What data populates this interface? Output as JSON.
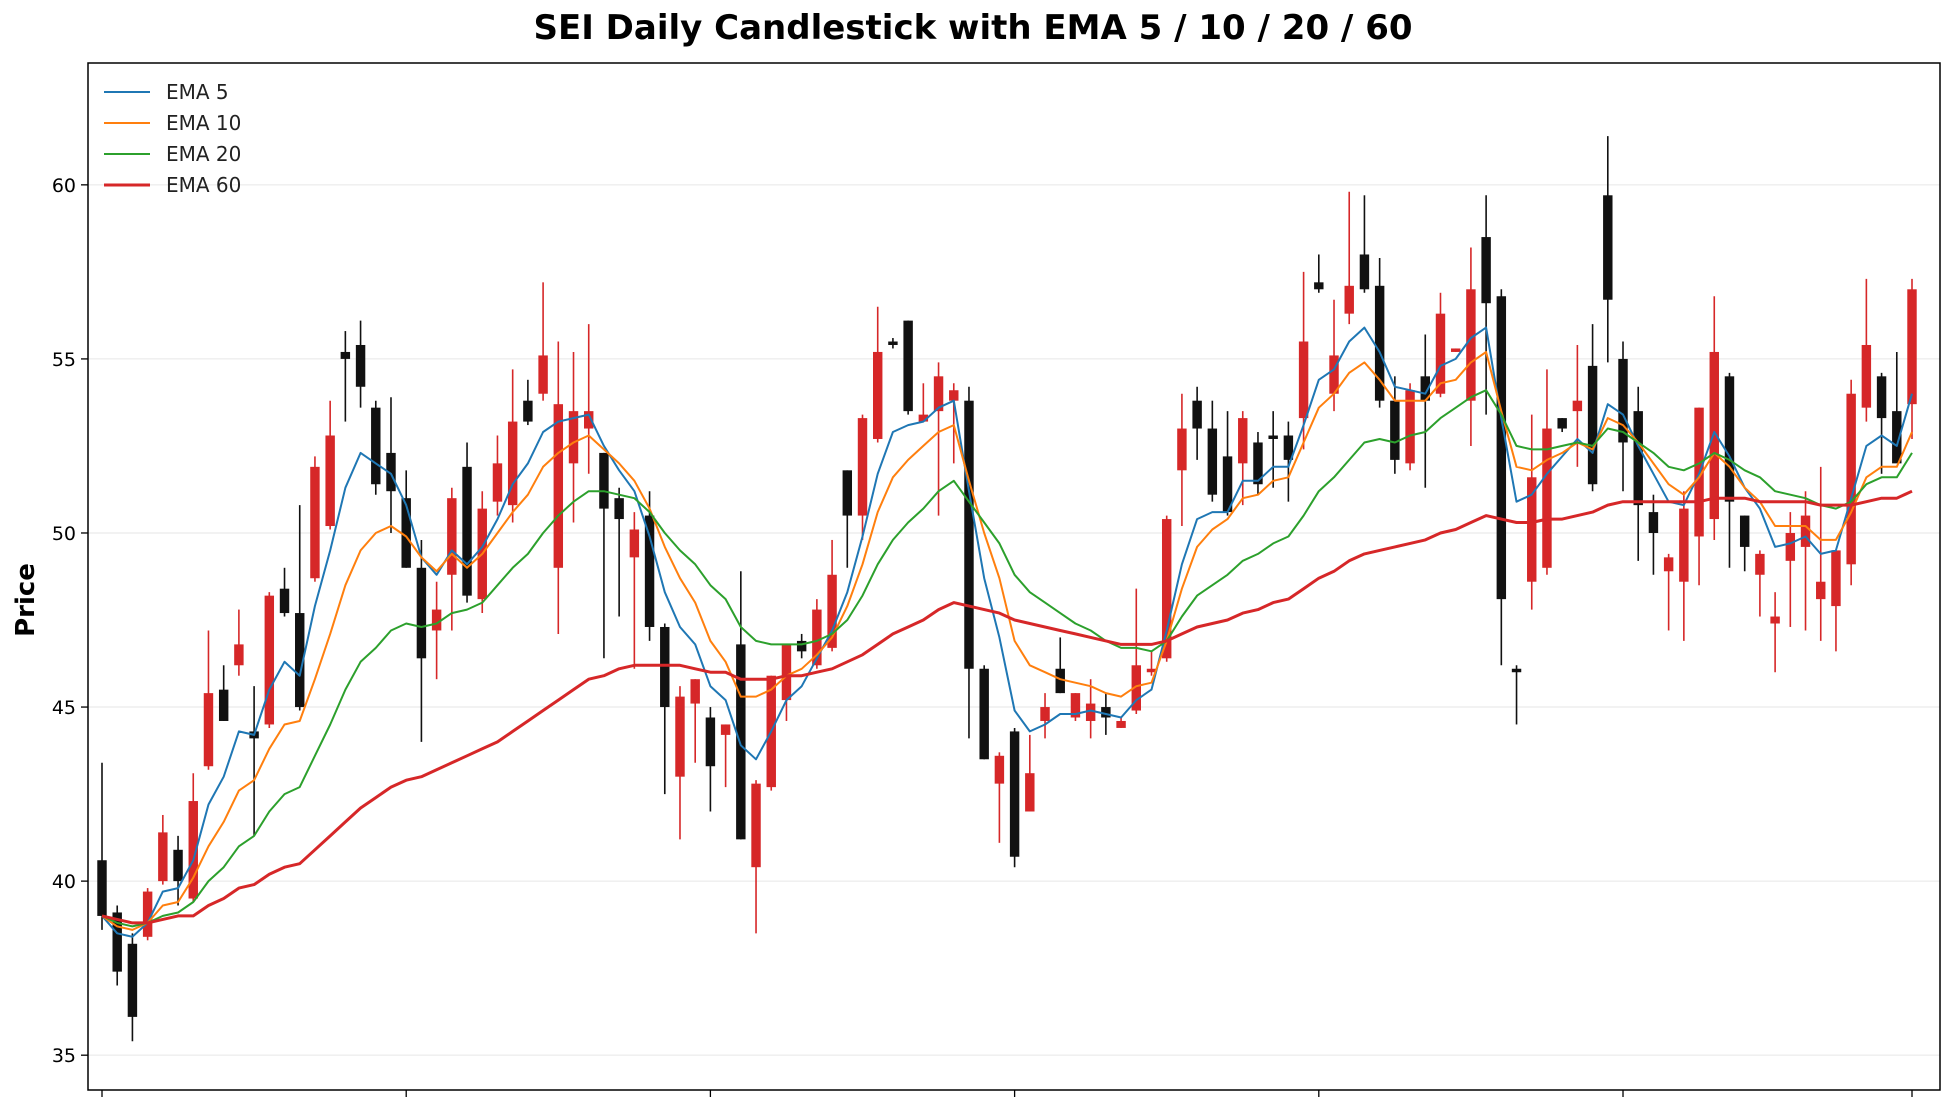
{
  "chart_data": {
    "type": "candlestick",
    "title": "SEI Daily Candlestick with EMA 5 / 10 / 20 / 60",
    "ylabel": "Price",
    "xlabel": "",
    "ylim": [
      34,
      63.5
    ],
    "yticks": [
      35,
      40,
      45,
      50,
      55,
      60
    ],
    "grid": "horizontal",
    "legend_position": "top-left",
    "up_color": "#d62728",
    "down_color": "#111111",
    "candles": [
      [
        40.6,
        43.4,
        38.6,
        39.0
      ],
      [
        39.1,
        39.3,
        37.0,
        37.4
      ],
      [
        38.2,
        38.5,
        35.4,
        36.1
      ],
      [
        38.4,
        39.8,
        38.3,
        39.7
      ],
      [
        40.0,
        41.9,
        39.9,
        41.4
      ],
      [
        40.9,
        41.3,
        39.3,
        40.0
      ],
      [
        39.5,
        43.1,
        39.4,
        42.3
      ],
      [
        43.3,
        47.2,
        43.2,
        45.4
      ],
      [
        45.5,
        46.2,
        44.6,
        44.6
      ],
      [
        46.2,
        47.8,
        45.9,
        46.8
      ],
      [
        44.3,
        45.6,
        41.3,
        44.1
      ],
      [
        44.5,
        48.3,
        44.4,
        48.2
      ],
      [
        48.4,
        49.0,
        47.6,
        47.7
      ],
      [
        47.7,
        50.8,
        44.9,
        45.0
      ],
      [
        48.7,
        52.2,
        48.6,
        51.9
      ],
      [
        50.2,
        53.8,
        50.1,
        52.8
      ],
      [
        55.2,
        55.8,
        53.2,
        55.0
      ],
      [
        55.4,
        56.1,
        53.6,
        54.2
      ],
      [
        53.6,
        53.8,
        51.1,
        51.4
      ],
      [
        52.3,
        53.9,
        50.0,
        51.2
      ],
      [
        51.0,
        51.8,
        49.0,
        49.0
      ],
      [
        49.0,
        49.8,
        44.0,
        46.4
      ],
      [
        47.2,
        48.6,
        45.8,
        47.8
      ],
      [
        48.8,
        51.3,
        47.2,
        51.0
      ],
      [
        51.9,
        52.6,
        48.0,
        48.2
      ],
      [
        48.1,
        51.2,
        47.7,
        50.7
      ],
      [
        50.9,
        52.8,
        50.5,
        52.0
      ],
      [
        50.8,
        54.7,
        50.3,
        53.2
      ],
      [
        53.8,
        54.4,
        53.1,
        53.2
      ],
      [
        54.0,
        57.2,
        53.8,
        55.1
      ],
      [
        49.0,
        55.5,
        47.1,
        53.7
      ],
      [
        52.0,
        55.2,
        50.3,
        53.5
      ],
      [
        53.0,
        56.0,
        51.7,
        53.5
      ],
      [
        52.3,
        52.3,
        46.4,
        50.7
      ],
      [
        51.0,
        51.3,
        47.6,
        50.4
      ],
      [
        49.3,
        50.6,
        46.1,
        50.1
      ],
      [
        50.5,
        51.2,
        46.9,
        47.3
      ],
      [
        47.3,
        47.4,
        42.5,
        45.0
      ],
      [
        43.0,
        45.6,
        41.2,
        45.3
      ],
      [
        45.1,
        45.8,
        43.4,
        45.8
      ],
      [
        44.7,
        45.0,
        42.0,
        43.3
      ],
      [
        44.2,
        44.5,
        42.7,
        44.5
      ],
      [
        46.8,
        48.9,
        41.2,
        41.2
      ],
      [
        40.4,
        42.9,
        38.5,
        42.8
      ],
      [
        42.7,
        45.9,
        42.6,
        45.9
      ],
      [
        45.2,
        46.8,
        44.6,
        46.8
      ],
      [
        46.9,
        47.1,
        46.4,
        46.6
      ],
      [
        46.2,
        48.1,
        46.1,
        47.8
      ],
      [
        46.7,
        49.8,
        46.6,
        48.8
      ],
      [
        51.8,
        51.8,
        49.0,
        50.5
      ],
      [
        50.5,
        53.4,
        49.8,
        53.3
      ],
      [
        52.7,
        56.5,
        52.6,
        55.2
      ],
      [
        55.5,
        55.6,
        55.3,
        55.4
      ],
      [
        56.1,
        56.1,
        53.4,
        53.5
      ],
      [
        53.2,
        54.3,
        53.2,
        53.4
      ],
      [
        53.5,
        54.9,
        50.5,
        54.5
      ],
      [
        53.8,
        54.3,
        52.0,
        54.1
      ],
      [
        53.8,
        54.2,
        44.1,
        46.1
      ],
      [
        46.1,
        46.2,
        43.5,
        43.5
      ],
      [
        42.8,
        43.7,
        41.1,
        43.6
      ],
      [
        44.3,
        44.4,
        40.4,
        40.7
      ],
      [
        42.0,
        44.2,
        42.0,
        43.1
      ],
      [
        44.6,
        45.4,
        44.1,
        45.0
      ],
      [
        46.1,
        47.0,
        45.4,
        45.4
      ],
      [
        44.7,
        45.4,
        44.6,
        45.4
      ],
      [
        44.6,
        45.8,
        44.1,
        45.1
      ],
      [
        45.0,
        45.4,
        44.2,
        44.7
      ],
      [
        44.4,
        44.7,
        44.4,
        44.6
      ],
      [
        44.9,
        48.4,
        44.8,
        46.2
      ],
      [
        46.0,
        46.6,
        45.9,
        46.1
      ],
      [
        46.4,
        50.5,
        46.3,
        50.4
      ],
      [
        51.8,
        54.0,
        50.2,
        53.0
      ],
      [
        53.8,
        54.2,
        52.1,
        53.0
      ],
      [
        53.0,
        53.8,
        50.9,
        51.1
      ],
      [
        52.2,
        53.5,
        50.5,
        50.6
      ],
      [
        52.0,
        53.5,
        50.8,
        53.3
      ],
      [
        52.6,
        52.9,
        51.1,
        51.4
      ],
      [
        52.8,
        53.5,
        51.3,
        52.7
      ],
      [
        52.8,
        53.2,
        50.9,
        52.1
      ],
      [
        53.3,
        57.5,
        52.4,
        55.5
      ],
      [
        57.2,
        58.0,
        56.9,
        57.0
      ],
      [
        54.0,
        56.7,
        53.5,
        55.1
      ],
      [
        56.3,
        59.8,
        56.0,
        57.1
      ],
      [
        58.0,
        59.7,
        56.9,
        57.0
      ],
      [
        57.1,
        57.9,
        53.6,
        53.8
      ],
      [
        53.8,
        54.5,
        51.7,
        52.1
      ],
      [
        52.0,
        54.3,
        51.8,
        54.1
      ],
      [
        54.5,
        55.7,
        51.3,
        53.8
      ],
      [
        54.0,
        56.9,
        53.9,
        56.3
      ],
      [
        55.2,
        55.3,
        55.2,
        55.3
      ],
      [
        53.8,
        58.2,
        52.5,
        57.0
      ],
      [
        58.5,
        59.7,
        53.4,
        56.6
      ],
      [
        56.8,
        57.0,
        46.2,
        48.1
      ],
      [
        46.1,
        46.2,
        44.5,
        46.0
      ],
      [
        48.6,
        53.4,
        47.8,
        51.6
      ],
      [
        49.0,
        54.7,
        48.8,
        53.0
      ],
      [
        53.3,
        53.3,
        52.9,
        53.0
      ],
      [
        53.5,
        55.4,
        51.9,
        53.8
      ],
      [
        54.8,
        56.0,
        51.2,
        51.4
      ],
      [
        59.7,
        61.4,
        54.9,
        56.7
      ],
      [
        55.0,
        55.5,
        51.2,
        52.6
      ],
      [
        53.5,
        54.2,
        49.2,
        50.8
      ],
      [
        50.6,
        51.1,
        48.8,
        50.0
      ],
      [
        48.9,
        49.4,
        47.2,
        49.3
      ],
      [
        48.6,
        51.2,
        46.9,
        50.7
      ],
      [
        49.9,
        53.6,
        48.5,
        53.6
      ],
      [
        50.4,
        56.8,
        49.8,
        55.2
      ],
      [
        54.5,
        54.6,
        49.0,
        50.9
      ],
      [
        50.5,
        50.5,
        48.9,
        49.6
      ],
      [
        48.8,
        49.5,
        47.6,
        49.4
      ],
      [
        47.4,
        48.3,
        46.0,
        47.6
      ],
      [
        49.2,
        50.6,
        47.3,
        50.0
      ],
      [
        49.6,
        51.2,
        47.2,
        50.5
      ],
      [
        48.1,
        51.9,
        46.9,
        48.6
      ],
      [
        47.9,
        49.5,
        46.6,
        49.5
      ],
      [
        49.1,
        54.4,
        48.5,
        54.0
      ],
      [
        53.6,
        57.3,
        53.2,
        55.4
      ],
      [
        54.5,
        54.6,
        51.7,
        53.3
      ],
      [
        53.5,
        55.2,
        52.1,
        52.0
      ],
      [
        53.7,
        57.3,
        52.7,
        57.0
      ]
    ],
    "series": [
      {
        "name": "EMA 5",
        "color": "#1f77b4",
        "width": 2,
        "values": [
          39.0,
          38.5,
          38.4,
          38.8,
          39.7,
          39.8,
          40.6,
          42.2,
          43.0,
          44.3,
          44.2,
          45.5,
          46.3,
          45.9,
          47.9,
          49.5,
          51.3,
          52.3,
          52.0,
          51.7,
          50.8,
          49.3,
          48.8,
          49.5,
          49.1,
          49.6,
          50.4,
          51.4,
          52.0,
          52.9,
          53.2,
          53.3,
          53.4,
          52.5,
          51.8,
          51.2,
          49.9,
          48.3,
          47.3,
          46.8,
          45.6,
          45.2,
          43.9,
          43.5,
          44.3,
          45.2,
          45.6,
          46.4,
          47.2,
          48.3,
          49.9,
          51.7,
          52.9,
          53.1,
          53.2,
          53.6,
          53.8,
          51.2,
          48.7,
          47.0,
          44.9,
          44.3,
          44.5,
          44.8,
          44.8,
          44.9,
          44.8,
          44.7,
          45.2,
          45.5,
          47.2,
          49.1,
          50.4,
          50.6,
          50.6,
          51.5,
          51.5,
          51.9,
          51.9,
          53.1,
          54.4,
          54.7,
          55.5,
          55.9,
          55.2,
          54.2,
          54.1,
          54.0,
          54.8,
          55.0,
          55.6,
          55.9,
          53.3,
          50.9,
          51.1,
          51.7,
          52.2,
          52.7,
          52.3,
          53.7,
          53.4,
          52.5,
          51.7,
          50.9,
          50.8,
          51.7,
          52.9,
          52.2,
          51.3,
          50.7,
          49.6,
          49.7,
          49.9,
          49.4,
          49.5,
          51.0,
          52.5,
          52.8,
          52.5,
          54.0
        ]
      },
      {
        "name": "EMA 10",
        "color": "#ff7f0e",
        "width": 2,
        "values": [
          39.0,
          38.7,
          38.6,
          38.8,
          39.3,
          39.4,
          40.1,
          41.0,
          41.7,
          42.6,
          42.9,
          43.8,
          44.5,
          44.6,
          45.8,
          47.1,
          48.5,
          49.5,
          50.0,
          50.2,
          49.9,
          49.3,
          48.9,
          49.4,
          49.0,
          49.4,
          50.0,
          50.6,
          51.1,
          51.9,
          52.3,
          52.6,
          52.8,
          52.4,
          52.0,
          51.5,
          50.7,
          49.6,
          48.7,
          48.0,
          46.9,
          46.3,
          45.3,
          45.3,
          45.5,
          45.9,
          46.1,
          46.5,
          47.0,
          47.9,
          49.1,
          50.6,
          51.6,
          52.1,
          52.5,
          52.9,
          53.1,
          51.5,
          50.0,
          48.7,
          46.9,
          46.2,
          46.0,
          45.8,
          45.7,
          45.6,
          45.4,
          45.3,
          45.6,
          45.7,
          46.9,
          48.4,
          49.6,
          50.1,
          50.4,
          51.0,
          51.1,
          51.5,
          51.6,
          52.6,
          53.6,
          54.0,
          54.6,
          54.9,
          54.4,
          53.8,
          53.8,
          53.8,
          54.3,
          54.4,
          54.9,
          55.2,
          53.5,
          51.9,
          51.8,
          52.1,
          52.3,
          52.6,
          52.4,
          53.3,
          53.1,
          52.6,
          52.0,
          51.4,
          51.1,
          51.6,
          52.3,
          51.9,
          51.3,
          50.9,
          50.2,
          50.2,
          50.2,
          49.8,
          49.8,
          50.6,
          51.6,
          51.9,
          51.9,
          52.9
        ]
      },
      {
        "name": "EMA 20",
        "color": "#2ca02c",
        "width": 2,
        "values": [
          39.0,
          38.8,
          38.7,
          38.8,
          39.0,
          39.1,
          39.4,
          40.0,
          40.4,
          41.0,
          41.3,
          42.0,
          42.5,
          42.7,
          43.6,
          44.5,
          45.5,
          46.3,
          46.7,
          47.2,
          47.4,
          47.3,
          47.4,
          47.7,
          47.8,
          48.0,
          48.5,
          49.0,
          49.4,
          50.0,
          50.5,
          50.9,
          51.2,
          51.2,
          51.1,
          51.0,
          50.6,
          50.0,
          49.5,
          49.1,
          48.5,
          48.1,
          47.3,
          46.9,
          46.8,
          46.8,
          46.8,
          46.9,
          47.1,
          47.5,
          48.2,
          49.1,
          49.8,
          50.3,
          50.7,
          51.2,
          51.5,
          50.9,
          50.3,
          49.7,
          48.8,
          48.3,
          48.0,
          47.7,
          47.4,
          47.2,
          46.9,
          46.7,
          46.7,
          46.6,
          46.9,
          47.6,
          48.2,
          48.5,
          48.8,
          49.2,
          49.4,
          49.7,
          49.9,
          50.5,
          51.2,
          51.6,
          52.1,
          52.6,
          52.7,
          52.6,
          52.8,
          52.9,
          53.3,
          53.6,
          53.9,
          54.1,
          53.4,
          52.5,
          52.4,
          52.4,
          52.5,
          52.6,
          52.5,
          53.0,
          52.9,
          52.6,
          52.3,
          51.9,
          51.8,
          52.0,
          52.3,
          52.1,
          51.8,
          51.6,
          51.2,
          51.1,
          51.0,
          50.8,
          50.7,
          50.9,
          51.4,
          51.6,
          51.6,
          52.3
        ]
      },
      {
        "name": "EMA 60",
        "color": "#d62728",
        "width": 3,
        "values": [
          39.0,
          38.9,
          38.8,
          38.8,
          38.9,
          39.0,
          39.0,
          39.3,
          39.5,
          39.8,
          39.9,
          40.2,
          40.4,
          40.5,
          40.9,
          41.3,
          41.7,
          42.1,
          42.4,
          42.7,
          42.9,
          43.0,
          43.2,
          43.4,
          43.6,
          43.8,
          44.0,
          44.3,
          44.6,
          44.9,
          45.2,
          45.5,
          45.8,
          45.9,
          46.1,
          46.2,
          46.2,
          46.2,
          46.2,
          46.1,
          46.0,
          46.0,
          45.8,
          45.8,
          45.8,
          45.9,
          45.9,
          46.0,
          46.1,
          46.3,
          46.5,
          46.8,
          47.1,
          47.3,
          47.5,
          47.8,
          48.0,
          47.9,
          47.8,
          47.7,
          47.5,
          47.4,
          47.3,
          47.2,
          47.1,
          47.0,
          46.9,
          46.8,
          46.8,
          46.8,
          46.9,
          47.1,
          47.3,
          47.4,
          47.5,
          47.7,
          47.8,
          48.0,
          48.1,
          48.4,
          48.7,
          48.9,
          49.2,
          49.4,
          49.5,
          49.6,
          49.7,
          49.8,
          50.0,
          50.1,
          50.3,
          50.5,
          50.4,
          50.3,
          50.3,
          50.4,
          50.4,
          50.5,
          50.6,
          50.8,
          50.9,
          50.9,
          50.9,
          50.9,
          50.9,
          50.9,
          51.0,
          51.0,
          51.0,
          50.9,
          50.9,
          50.9,
          50.9,
          50.8,
          50.8,
          50.8,
          50.9,
          51.0,
          51.0,
          51.2
        ]
      }
    ]
  }
}
